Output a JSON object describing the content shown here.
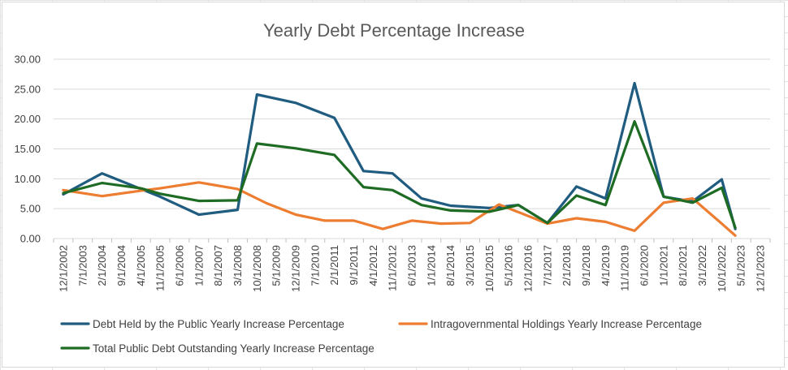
{
  "chart_data": {
    "type": "line",
    "title": "Yearly Debt Percentage Increase",
    "xlabel": "",
    "ylabel": "",
    "ylim": [
      0,
      30
    ],
    "y_ticks": [
      "0.00",
      "5.00",
      "10.00",
      "15.00",
      "20.00",
      "25.00",
      "30.00"
    ],
    "grid": true,
    "legend_position": "bottom",
    "categories": [
      "12/1/2002",
      "7/1/2003",
      "2/1/2004",
      "9/1/2004",
      "4/1/2005",
      "11/1/2005",
      "6/1/2006",
      "1/1/2007",
      "8/1/2007",
      "3/1/2008",
      "10/1/2008",
      "5/1/2009",
      "12/1/2009",
      "7/1/2010",
      "2/1/2011",
      "9/1/2011",
      "4/1/2012",
      "11/1/2012",
      "6/1/2013",
      "1/1/2014",
      "8/1/2014",
      "3/1/2015",
      "10/1/2015",
      "5/1/2016",
      "12/1/2016",
      "7/1/2017",
      "2/1/2018",
      "9/1/2018",
      "4/1/2019",
      "11/1/2019",
      "6/1/2020",
      "1/1/2021",
      "8/1/2021",
      "3/1/2022",
      "10/1/2022",
      "5/1/2023",
      "12/1/2023"
    ],
    "series": [
      {
        "name": "Debt Held by the Public Yearly Increase Percentage",
        "color": "#1f5c80",
        "points": [
          [
            0,
            7.4
          ],
          [
            2,
            10.9
          ],
          [
            5,
            7.0
          ],
          [
            7,
            4.0
          ],
          [
            9,
            4.8
          ],
          [
            10,
            24.1
          ],
          [
            12,
            22.7
          ],
          [
            14,
            20.2
          ],
          [
            15.5,
            11.3
          ],
          [
            17,
            10.9
          ],
          [
            18.5,
            6.7
          ],
          [
            20,
            5.5
          ],
          [
            22,
            5.1
          ],
          [
            23.5,
            5.6
          ],
          [
            25,
            2.6
          ],
          [
            26.5,
            8.7
          ],
          [
            28,
            6.7
          ],
          [
            29.5,
            26.0
          ],
          [
            31,
            7.0
          ],
          [
            32.5,
            6.2
          ],
          [
            34,
            9.9
          ],
          [
            34.7,
            1.6
          ]
        ]
      },
      {
        "name": "Intragovernmental Holdings Yearly Increase Percentage",
        "color": "#ed7d31",
        "points": [
          [
            0,
            8.1
          ],
          [
            2,
            7.1
          ],
          [
            4,
            8.0
          ],
          [
            5,
            8.4
          ],
          [
            7,
            9.4
          ],
          [
            9,
            8.3
          ],
          [
            10.5,
            5.9
          ],
          [
            12,
            4.0
          ],
          [
            13.5,
            3.0
          ],
          [
            15,
            3.0
          ],
          [
            16.5,
            1.6
          ],
          [
            18,
            3.0
          ],
          [
            19.5,
            2.5
          ],
          [
            21,
            2.6
          ],
          [
            22.5,
            5.7
          ],
          [
            25,
            2.5
          ],
          [
            26.5,
            3.4
          ],
          [
            28,
            2.8
          ],
          [
            29.5,
            1.3
          ],
          [
            31,
            6.0
          ],
          [
            32.5,
            6.7
          ],
          [
            34,
            2.5
          ],
          [
            34.7,
            0.5
          ]
        ]
      },
      {
        "name": "Total Public Debt Outstanding Yearly Increase Percentage",
        "color": "#1e6b24",
        "points": [
          [
            0,
            7.6
          ],
          [
            2,
            9.3
          ],
          [
            4,
            8.4
          ],
          [
            5,
            7.5
          ],
          [
            7,
            6.3
          ],
          [
            9,
            6.4
          ],
          [
            10,
            15.9
          ],
          [
            12,
            15.1
          ],
          [
            14,
            14.0
          ],
          [
            15.5,
            8.6
          ],
          [
            17,
            8.1
          ],
          [
            18.5,
            5.6
          ],
          [
            20,
            4.7
          ],
          [
            22,
            4.5
          ],
          [
            23.5,
            5.6
          ],
          [
            25,
            2.6
          ],
          [
            26.5,
            7.2
          ],
          [
            28,
            5.6
          ],
          [
            29.5,
            19.6
          ],
          [
            31,
            7.0
          ],
          [
            32.5,
            6.0
          ],
          [
            34,
            8.5
          ],
          [
            34.7,
            1.8
          ]
        ]
      }
    ]
  }
}
